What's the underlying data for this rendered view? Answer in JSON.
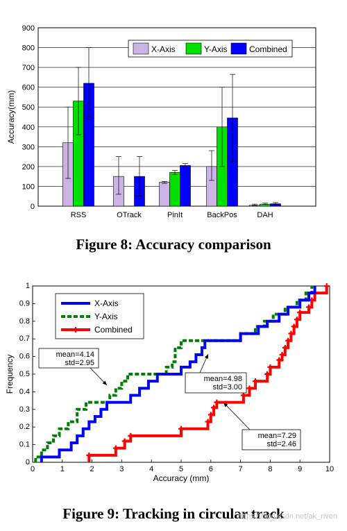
{
  "figure8": {
    "caption": "Figure 8: Accuracy comparison",
    "chart_data": {
      "type": "bar",
      "categories": [
        "RSS",
        "OTrack",
        "PinIt",
        "BackPos",
        "DAH"
      ],
      "series": [
        {
          "name": "X-Axis",
          "color": "#ccb3e6",
          "values": [
            320,
            150,
            120,
            200,
            5
          ],
          "err_low": [
            140,
            60,
            115,
            130,
            3
          ],
          "err_high": [
            500,
            250,
            125,
            280,
            10
          ]
        },
        {
          "name": "Y-Axis",
          "color": "#00e000",
          "values": [
            530,
            0,
            170,
            400,
            10
          ],
          "err_low": [
            360,
            0,
            160,
            200,
            8
          ],
          "err_high": [
            700,
            0,
            180,
            600,
            15
          ]
        },
        {
          "name": "Combined",
          "color": "#0000ff",
          "values": [
            620,
            150,
            205,
            445,
            12
          ],
          "err_low": [
            450,
            50,
            195,
            225,
            8
          ],
          "err_high": [
            800,
            250,
            215,
            665,
            18
          ]
        }
      ],
      "ylabel": "Accuracy(mm)",
      "xlabel": "",
      "ylim": [
        0,
        900
      ],
      "yticks": [
        0,
        100,
        200,
        300,
        400,
        500,
        600,
        700,
        800,
        900
      ],
      "grid": true,
      "legend": "top-right"
    }
  },
  "figure9": {
    "caption": "Figure 9: Tracking in circular track",
    "chart_data": {
      "type": "line",
      "xlabel": "Accuracy (mm)",
      "ylabel": "Frequency",
      "xlim": [
        0,
        10
      ],
      "ylim": [
        0,
        1
      ],
      "xticks": [
        0,
        1,
        2,
        3,
        4,
        5,
        6,
        7,
        8,
        9,
        10
      ],
      "yticks": [
        0,
        0.1,
        0.2,
        0.3,
        0.4,
        0.5,
        0.6,
        0.7,
        0.8,
        0.9,
        1
      ],
      "legend": "top-left",
      "series": [
        {
          "name": "X-Axis",
          "color": "#0000ff",
          "style": "solid",
          "x": [
            0.3,
            0.9,
            1.3,
            1.5,
            1.7,
            1.9,
            2.1,
            2.3,
            2.5,
            2.8,
            3.3,
            3.6,
            3.9,
            4.2,
            4.6,
            5.0,
            5.3,
            5.5,
            5.7,
            5.8,
            6.0,
            6.3,
            7.0,
            7.3,
            7.6,
            7.9,
            8.3,
            8.6,
            8.8,
            9.0,
            9.3,
            9.5
          ],
          "y": [
            0.03,
            0.07,
            0.11,
            0.15,
            0.19,
            0.23,
            0.26,
            0.3,
            0.34,
            0.34,
            0.38,
            0.42,
            0.46,
            0.5,
            0.5,
            0.54,
            0.57,
            0.61,
            0.65,
            0.69,
            0.69,
            0.69,
            0.73,
            0.73,
            0.77,
            0.8,
            0.84,
            0.88,
            0.88,
            0.92,
            0.96,
            1.0
          ]
        },
        {
          "name": "Y-Axis",
          "color": "#008000",
          "style": "dashed",
          "x": [
            0.1,
            0.3,
            0.5,
            0.7,
            0.9,
            1.2,
            1.5,
            1.8,
            2.3,
            2.6,
            2.8,
            3.0,
            3.2,
            3.4,
            3.6,
            4.5,
            4.7,
            4.8,
            5.0,
            5.5,
            6.0,
            6.5,
            7.0,
            7.5,
            7.8,
            8.1,
            8.5,
            8.9,
            9.2,
            9.4
          ],
          "y": [
            0.03,
            0.07,
            0.11,
            0.15,
            0.19,
            0.23,
            0.3,
            0.34,
            0.34,
            0.38,
            0.42,
            0.46,
            0.5,
            0.5,
            0.5,
            0.54,
            0.57,
            0.65,
            0.69,
            0.69,
            0.69,
            0.69,
            0.73,
            0.77,
            0.8,
            0.84,
            0.88,
            0.92,
            0.96,
            1.0
          ]
        },
        {
          "name": "Combined",
          "color": "#ff0000",
          "style": "solid-plus",
          "x": [
            1.9,
            2.8,
            3.1,
            3.3,
            5.0,
            5.9,
            6.0,
            6.1,
            6.2,
            7.1,
            7.3,
            7.5,
            7.9,
            8.0,
            8.3,
            8.4,
            8.5,
            8.6,
            8.7,
            8.8,
            8.9,
            9.0,
            9.3,
            9.4,
            9.5,
            9.9
          ],
          "y": [
            0.04,
            0.08,
            0.12,
            0.15,
            0.19,
            0.23,
            0.27,
            0.31,
            0.34,
            0.38,
            0.42,
            0.46,
            0.5,
            0.54,
            0.58,
            0.61,
            0.65,
            0.69,
            0.73,
            0.77,
            0.81,
            0.85,
            0.88,
            0.92,
            0.96,
            1.0
          ]
        }
      ],
      "annotations": [
        {
          "label": "mean=4.14\nstd=2.95",
          "target_x": 4.14,
          "target_y": 0.5
        },
        {
          "label": "mean=4.98\nstd=3.00",
          "target_x": 4.98,
          "target_y": 0.5
        },
        {
          "label": "mean=7.29\nstd=2.46",
          "target_x": 7.29,
          "target_y": 0.5
        }
      ]
    }
  },
  "watermark": "https://blog.csdn.net/ak_riven"
}
